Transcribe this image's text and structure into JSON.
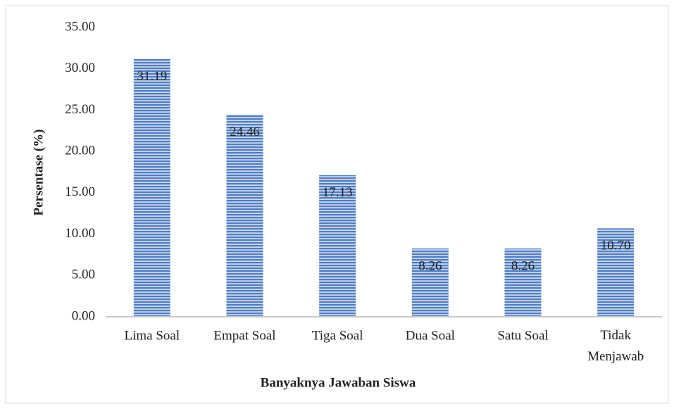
{
  "chart_data": {
    "type": "bar",
    "x_label": "Banyaknya Jawaban Siswa",
    "y_label": "Persentase (%)",
    "categories": [
      "Lima Soal",
      "Empat Soal",
      "Tiga Soal",
      "Dua Soal",
      "Satu Soal",
      "Tidak Menjawab"
    ],
    "values": [
      31.19,
      24.46,
      17.13,
      8.26,
      8.26,
      10.7
    ],
    "value_labels": [
      "31.19",
      "24.46",
      "17.13",
      "8.26",
      "8.26",
      "10.70"
    ],
    "color": "#4f7ec2",
    "ylim": [
      0,
      35
    ],
    "yticks": [
      {
        "value": 0,
        "label": "0.00"
      },
      {
        "value": 5,
        "label": "5.00"
      },
      {
        "value": 10,
        "label": "10.00"
      },
      {
        "value": 15,
        "label": "15.00"
      },
      {
        "value": 20,
        "label": "20.00"
      },
      {
        "value": 25,
        "label": "25.00"
      },
      {
        "value": 30,
        "label": "30.00"
      },
      {
        "value": 35,
        "label": "35.00"
      }
    ],
    "grid": false
  }
}
